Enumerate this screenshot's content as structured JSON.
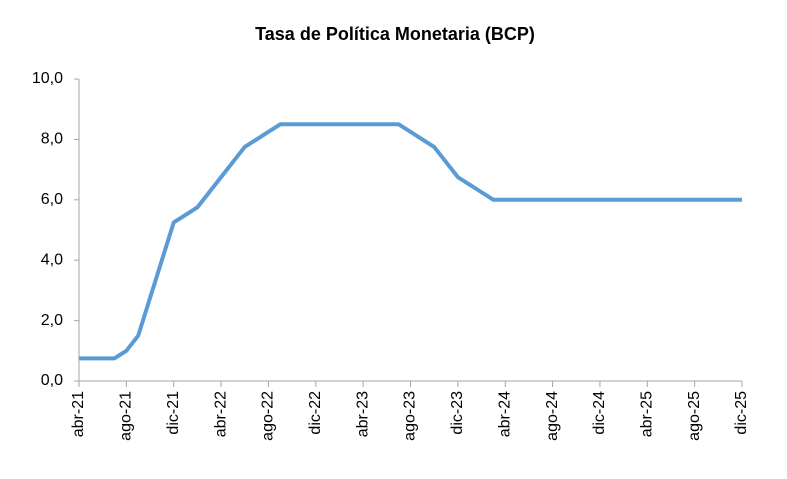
{
  "chart_data": {
    "type": "line",
    "title": "Tasa de Política Monetaria (BCP)",
    "categories": [
      "abr-21",
      null,
      null,
      null,
      "ago-21",
      null,
      null,
      null,
      "dic-21",
      null,
      null,
      null,
      "abr-22",
      null,
      null,
      null,
      "ago-22",
      null,
      null,
      null,
      "dic-22",
      null,
      null,
      null,
      "abr-23",
      null,
      null,
      null,
      "ago-23",
      null,
      null,
      null,
      "dic-23",
      null,
      null,
      null,
      "abr-24",
      null,
      null,
      null,
      "ago-24",
      null,
      null,
      null,
      "dic-24",
      null,
      null,
      null,
      "abr-25",
      null,
      null,
      null,
      "ago-25",
      null,
      null,
      null,
      "dic-25"
    ],
    "values": [
      0.75,
      0.75,
      0.75,
      0.75,
      1.0,
      1.5,
      2.75,
      4.0,
      5.25,
      5.5,
      5.75,
      6.25,
      6.75,
      7.25,
      7.75,
      8.0,
      8.25,
      8.5,
      8.5,
      8.5,
      8.5,
      8.5,
      8.5,
      8.5,
      8.5,
      8.5,
      8.5,
      8.5,
      8.25,
      8.0,
      7.75,
      7.25,
      6.75,
      6.5,
      6.25,
      6.0,
      6.0,
      6.0,
      6.0,
      6.0,
      6.0,
      6.0,
      6.0,
      6.0,
      6.0,
      6.0,
      6.0,
      6.0,
      6.0,
      6.0,
      6.0,
      6.0,
      6.0,
      6.0,
      6.0,
      6.0,
      6.0
    ],
    "color": "#5b9bd5",
    "ylim": [
      0,
      10
    ],
    "yticks": [
      {
        "value": 0,
        "label": "0,0"
      },
      {
        "value": 2,
        "label": "2,0"
      },
      {
        "value": 4,
        "label": "4,0"
      },
      {
        "value": 6,
        "label": "6,0"
      },
      {
        "value": 8,
        "label": "8,0"
      },
      {
        "value": 10,
        "label": "10,0"
      }
    ],
    "grid": false
  }
}
